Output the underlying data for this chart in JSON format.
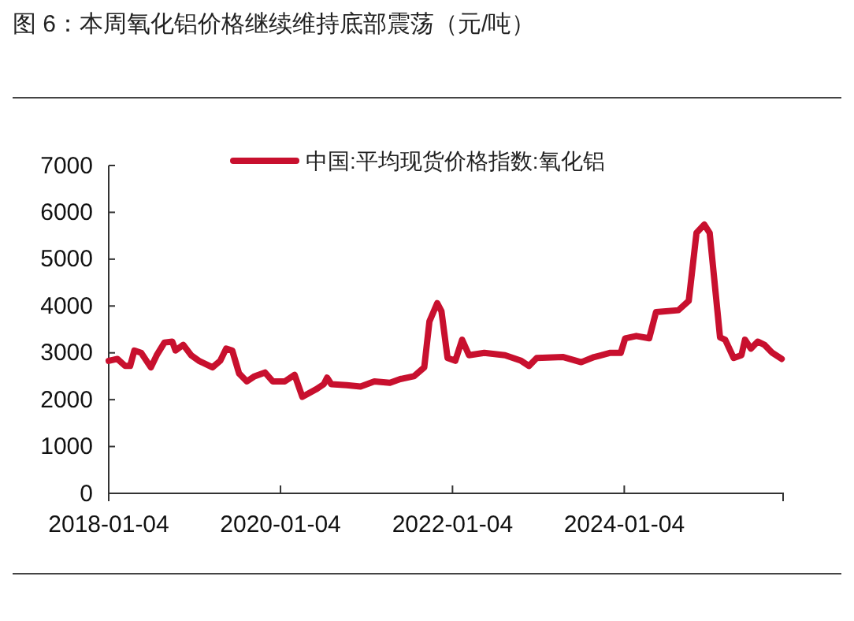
{
  "chart_data": {
    "type": "line",
    "title": "图 6：本周氧化铝价格继续维持底部震荡（元/吨）",
    "x": [
      "2018-01-04",
      "2018-02-10",
      "2018-03-15",
      "2018-04-05",
      "2018-04-23",
      "2018-05-22",
      "2018-07-02",
      "2018-07-27",
      "2018-08-29",
      "2018-10-01",
      "2018-10-15",
      "2018-11-17",
      "2018-12-20",
      "2019-01-22",
      "2019-03-21",
      "2019-04-23",
      "2019-05-18",
      "2019-06-13",
      "2019-07-12",
      "2019-08-14",
      "2019-09-16",
      "2019-10-30",
      "2019-12-02",
      "2020-01-22",
      "2020-03-04",
      "2020-04-06",
      "2020-06-03",
      "2020-07-06",
      "2020-07-20",
      "2020-08-07",
      "2020-10-12",
      "2020-12-09",
      "2021-02-06",
      "2021-04-13",
      "2021-05-27",
      "2021-07-24",
      "2021-09-06",
      "2021-09-28",
      "2021-10-31",
      "2021-11-18",
      "2021-12-14",
      "2022-01-16",
      "2022-02-14",
      "2022-03-15",
      "2022-05-19",
      "2022-08-15",
      "2022-10-23",
      "2022-11-25",
      "2022-12-28",
      "2023-04-20",
      "2023-07-05",
      "2023-08-29",
      "2023-11-06",
      "2023-12-20",
      "2024-01-08",
      "2024-02-24",
      "2024-04-19",
      "2024-05-18",
      "2024-08-21",
      "2024-10-04",
      "2024-11-06",
      "2024-12-09",
      "2025-01-01",
      "2025-02-03",
      "2025-02-14",
      "2025-03-08",
      "2025-04-13",
      "2025-05-16",
      "2025-05-31",
      "2025-06-25",
      "2025-07-24",
      "2025-08-22",
      "2025-09-24",
      "2025-11-03"
    ],
    "series": [
      {
        "name": "中国:平均现货价格指数:氧化铝",
        "color": "#c8102e",
        "values": [
          2830,
          2870,
          2720,
          2720,
          3050,
          3000,
          2690,
          2950,
          3220,
          3240,
          3050,
          3170,
          2950,
          2830,
          2690,
          2830,
          3090,
          3050,
          2560,
          2390,
          2500,
          2580,
          2390,
          2390,
          2530,
          2060,
          2220,
          2330,
          2470,
          2330,
          2310,
          2280,
          2390,
          2360,
          2440,
          2500,
          2690,
          3670,
          4060,
          3890,
          2890,
          2830,
          3280,
          2950,
          3000,
          2950,
          2830,
          2720,
          2890,
          2910,
          2800,
          2910,
          3000,
          3000,
          3310,
          3360,
          3310,
          3870,
          3910,
          4110,
          5560,
          5740,
          5560,
          3890,
          3330,
          3280,
          2890,
          2950,
          3280,
          3090,
          3240,
          3170,
          3000,
          2870
        ]
      }
    ],
    "xlim": [
      "2018-01-04",
      "2025-11-09"
    ],
    "xticks": [
      "2018-01-04",
      "2020-01-04",
      "2022-01-04",
      "2024-01-04"
    ],
    "ylim": [
      0,
      7000
    ],
    "yticks": [
      0,
      1000,
      2000,
      3000,
      4000,
      5000,
      6000,
      7000
    ],
    "grid": false,
    "legend": "top",
    "marker": "none",
    "line_style": "solid"
  }
}
